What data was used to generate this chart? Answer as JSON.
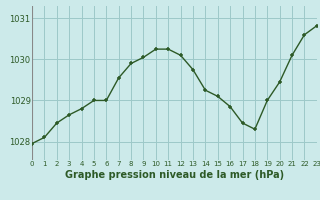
{
  "x": [
    0,
    1,
    2,
    3,
    4,
    5,
    6,
    7,
    8,
    9,
    10,
    11,
    12,
    13,
    14,
    15,
    16,
    17,
    18,
    19,
    20,
    21,
    22,
    23
  ],
  "y": [
    1027.95,
    1028.1,
    1028.45,
    1028.65,
    1028.8,
    1029.0,
    1029.0,
    1029.55,
    1029.9,
    1030.05,
    1030.25,
    1030.25,
    1030.1,
    1029.75,
    1029.25,
    1029.1,
    1028.85,
    1028.45,
    1028.3,
    1029.0,
    1029.45,
    1030.1,
    1030.6,
    1030.82
  ],
  "bg_color": "#cceaea",
  "plot_bg_color": "#cceaea",
  "line_color": "#2d5a27",
  "marker_color": "#2d5a27",
  "grid_color": "#9dc8c8",
  "bottom_bar_color": "#5a8a5a",
  "xlabel": "Graphe pression niveau de la mer (hPa)",
  "xlabel_fontsize": 7.0,
  "ytick_labels": [
    "1028",
    "1029",
    "1030",
    "1031"
  ],
  "ytick_values": [
    1028,
    1029,
    1030,
    1031
  ],
  "xticks": [
    0,
    1,
    2,
    3,
    4,
    5,
    6,
    7,
    8,
    9,
    10,
    11,
    12,
    13,
    14,
    15,
    16,
    17,
    18,
    19,
    20,
    21,
    22,
    23
  ],
  "ylim": [
    1027.55,
    1031.3
  ],
  "xlim": [
    0,
    23
  ],
  "ytick_fontsize": 6.0,
  "xtick_fontsize": 5.0,
  "marker_size": 3.5,
  "line_width": 1.0
}
